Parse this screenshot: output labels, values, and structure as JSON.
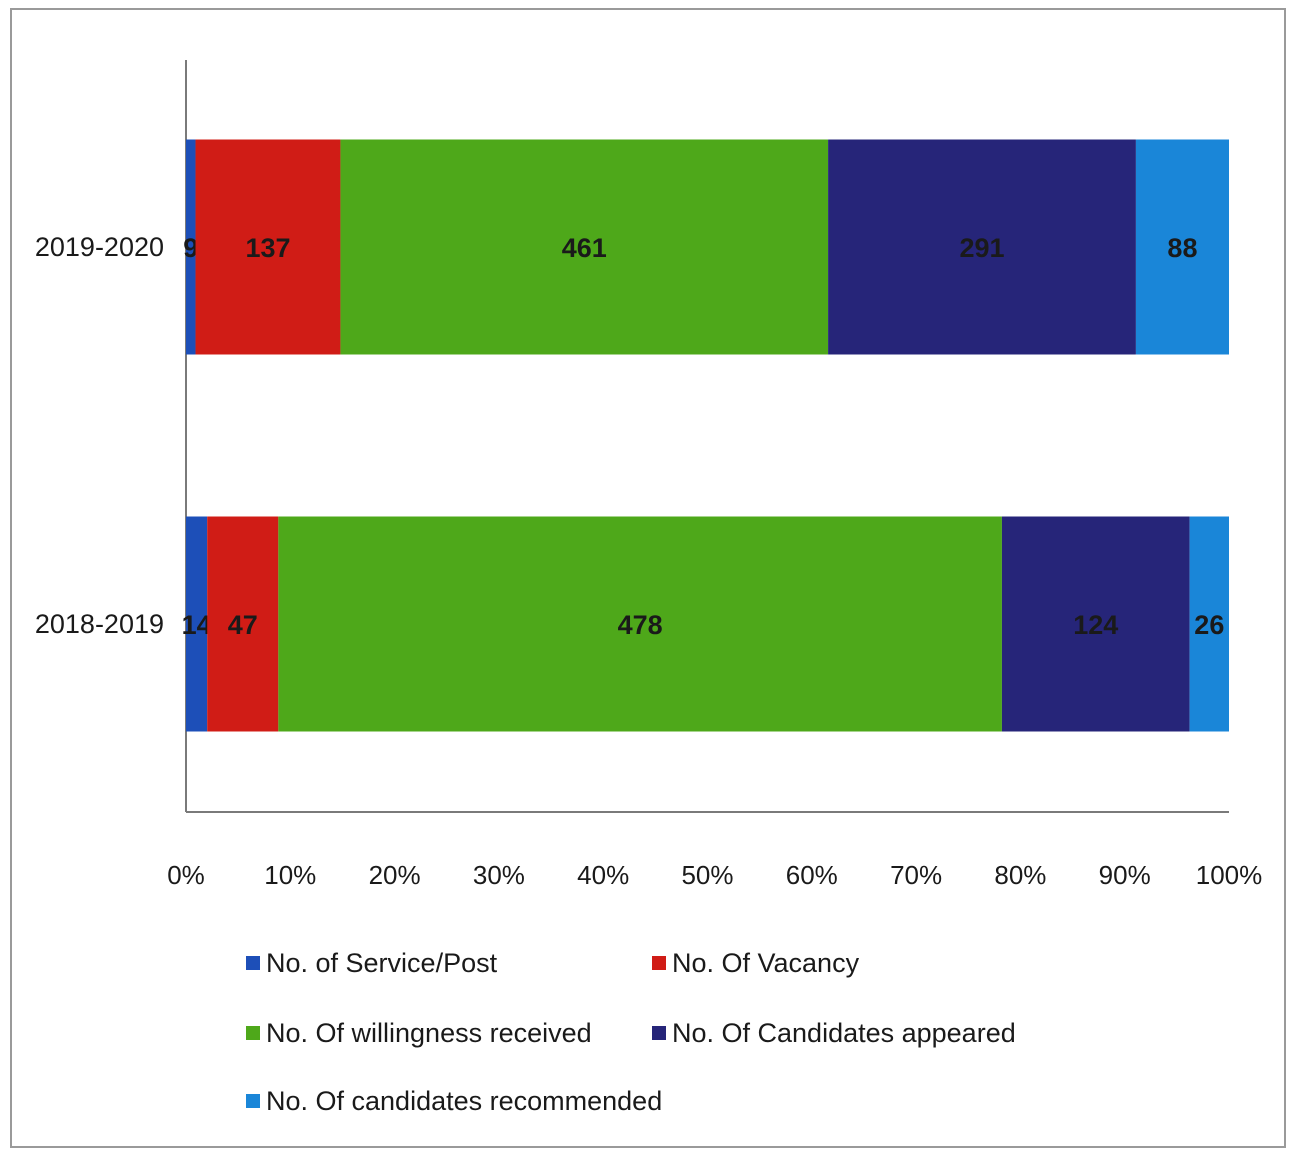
{
  "chart_data": {
    "type": "bar",
    "orientation": "horizontal",
    "stacking": "percent",
    "categories": [
      "2019-2020",
      "2018-2019"
    ],
    "series": [
      {
        "name": "No. of Service/Post",
        "color": "#1d4fb8",
        "values": [
          9,
          14
        ]
      },
      {
        "name": "No. Of Vacancy",
        "color": "#d01c16",
        "values": [
          137,
          47
        ]
      },
      {
        "name": "No. Of willingness received",
        "color": "#4ea81a",
        "values": [
          461,
          478
        ]
      },
      {
        "name": "No. Of Candidates appeared",
        "color": "#262579",
        "values": [
          291,
          124
        ]
      },
      {
        "name": "No. Of candidates recommended",
        "color": "#1a86d8",
        "values": [
          88,
          26
        ]
      }
    ],
    "x_ticks": [
      "0%",
      "10%",
      "20%",
      "30%",
      "40%",
      "50%",
      "60%",
      "70%",
      "80%",
      "90%",
      "100%"
    ],
    "xlim": [
      0,
      100
    ],
    "grid": false,
    "legend_position": "bottom"
  }
}
